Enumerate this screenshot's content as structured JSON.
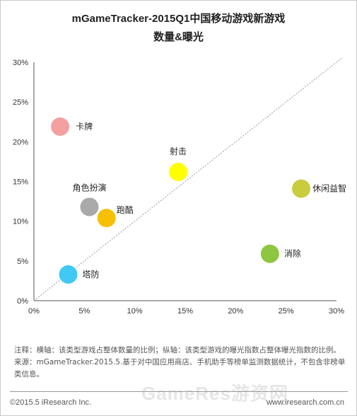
{
  "title_line1": "mGameTracker-2015Q1中国移动游戏新游戏",
  "title_line2": "数量&曝光",
  "chart_data": {
    "type": "scatter",
    "xlim": [
      0,
      30
    ],
    "ylim": [
      0,
      30
    ],
    "x_ticks": [
      "0%",
      "5%",
      "10%",
      "15%",
      "20%",
      "25%",
      "30%"
    ],
    "y_ticks": [
      "0%",
      "5%",
      "10%",
      "15%",
      "20%",
      "25%",
      "30%"
    ],
    "tick_values": [
      0,
      5,
      10,
      15,
      20,
      25,
      30
    ],
    "diagonal_reference_line": true,
    "points": [
      {
        "label": "卡牌",
        "x": 2.6,
        "y": 21.9,
        "color": "#f4a0a0"
      },
      {
        "label": "射击",
        "x": 14.3,
        "y": 16.2,
        "color": "#ffff00"
      },
      {
        "label": "休闲益智",
        "x": 26.5,
        "y": 14.1,
        "color": "#c9cc3f"
      },
      {
        "label": "角色扮演",
        "x": 5.5,
        "y": 11.8,
        "color": "#a9a9a9"
      },
      {
        "label": "跑酷",
        "x": 7.2,
        "y": 10.4,
        "color": "#f5c000"
      },
      {
        "label": "消除",
        "x": 23.4,
        "y": 5.9,
        "color": "#8dc63f"
      },
      {
        "label": "塔防",
        "x": 3.4,
        "y": 3.3,
        "color": "#42c8f4"
      }
    ]
  },
  "note_line1": "注释：横轴：该类型游戏占整体数量的比例；纵轴：该类型游戏的曝光指数占整体曝光指数的比例。",
  "note_line2": "来源：mGameTracker.2015.5.基于对中国应用商店、手机助手等榜单监测数据统计，不包含非榜单类信息。",
  "footer_left": "©2015.5 iResearch Inc.",
  "footer_right": "www.iresearch.com.cn",
  "watermark": "GameRes游资网"
}
